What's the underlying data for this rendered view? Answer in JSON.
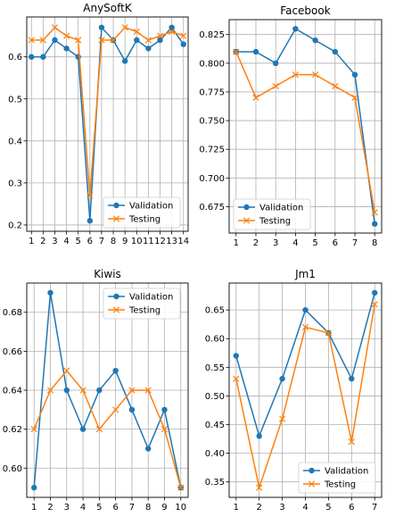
{
  "colors": {
    "validation": "#1f77b4",
    "testing": "#ff7f0e",
    "grid": "#b0b0b0"
  },
  "chart_data": [
    {
      "type": "line",
      "title": "AnySoftK",
      "x": [
        1,
        2,
        3,
        4,
        5,
        6,
        7,
        8,
        9,
        10,
        11,
        12,
        13,
        14
      ],
      "xticks": [
        "1",
        "2",
        "3",
        "4",
        "5",
        "6",
        "7",
        "8",
        "9",
        "10",
        "11",
        "12",
        "13",
        "14"
      ],
      "yticks": [
        "0.2",
        "0.3",
        "0.4",
        "0.5",
        "0.6"
      ],
      "ylim": [
        0.185,
        0.695
      ],
      "xlim": [
        0.6,
        14.4
      ],
      "grid": true,
      "legend": "lower-right",
      "series": [
        {
          "name": "Validation",
          "values": [
            0.6,
            0.6,
            0.64,
            0.62,
            0.6,
            0.21,
            0.67,
            0.64,
            0.59,
            0.64,
            0.62,
            0.64,
            0.67,
            0.63
          ]
        },
        {
          "name": "Testing",
          "values": [
            0.64,
            0.64,
            0.67,
            0.65,
            0.64,
            0.27,
            0.64,
            0.64,
            0.67,
            0.66,
            0.64,
            0.65,
            0.66,
            0.65
          ]
        }
      ]
    },
    {
      "type": "line",
      "title": "Facebook",
      "x": [
        1,
        2,
        3,
        4,
        5,
        6,
        7,
        8
      ],
      "xticks": [
        "1",
        "2",
        "3",
        "4",
        "5",
        "6",
        "7",
        "8"
      ],
      "yticks": [
        "0.675",
        "0.700",
        "0.725",
        "0.750",
        "0.775",
        "0.800",
        "0.825"
      ],
      "ylim": [
        0.652,
        0.838
      ],
      "xlim": [
        0.65,
        8.35
      ],
      "grid": true,
      "legend": "lower-left",
      "series": [
        {
          "name": "Validation",
          "values": [
            0.81,
            0.81,
            0.8,
            0.83,
            0.82,
            0.81,
            0.79,
            0.66
          ]
        },
        {
          "name": "Testing",
          "values": [
            0.81,
            0.77,
            0.78,
            0.79,
            0.79,
            0.78,
            0.77,
            0.67
          ]
        }
      ]
    },
    {
      "type": "line",
      "title": "Kiwis",
      "x": [
        1,
        2,
        3,
        4,
        5,
        6,
        7,
        8,
        9,
        10
      ],
      "xticks": [
        "1",
        "2",
        "3",
        "4",
        "5",
        "6",
        "7",
        "8",
        "9",
        "10"
      ],
      "yticks": [
        "0.60",
        "0.62",
        "0.64",
        "0.66",
        "0.68"
      ],
      "ylim": [
        0.585,
        0.695
      ],
      "xlim": [
        0.55,
        10.45
      ],
      "grid": true,
      "legend": "upper-right",
      "series": [
        {
          "name": "Validation",
          "values": [
            0.59,
            0.69,
            0.64,
            0.62,
            0.64,
            0.65,
            0.63,
            0.61,
            0.63,
            0.59
          ]
        },
        {
          "name": "Testing",
          "values": [
            0.62,
            0.64,
            0.65,
            0.64,
            0.62,
            0.63,
            0.64,
            0.64,
            0.62,
            0.59
          ]
        }
      ]
    },
    {
      "type": "line",
      "title": "Jm1",
      "x": [
        1,
        2,
        3,
        4,
        5,
        6,
        7
      ],
      "xticks": [
        "1",
        "2",
        "3",
        "4",
        "5",
        "6",
        "7"
      ],
      "yticks": [
        "0.35",
        "0.40",
        "0.45",
        "0.50",
        "0.55",
        "0.60",
        "0.65"
      ],
      "ylim": [
        0.323,
        0.697
      ],
      "xlim": [
        0.7,
        7.3
      ],
      "grid": true,
      "legend": "lower-right",
      "series": [
        {
          "name": "Validation",
          "values": [
            0.57,
            0.43,
            0.53,
            0.65,
            0.61,
            0.53,
            0.68
          ]
        },
        {
          "name": "Testing",
          "values": [
            0.53,
            0.34,
            0.46,
            0.62,
            0.61,
            0.42,
            0.66
          ]
        }
      ]
    }
  ]
}
